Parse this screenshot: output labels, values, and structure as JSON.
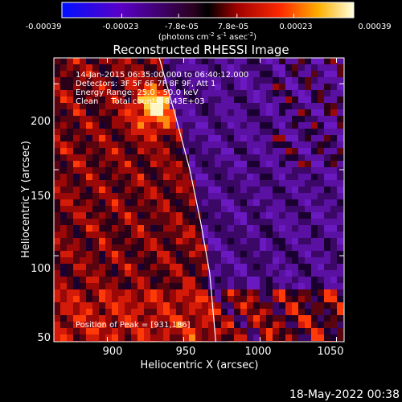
{
  "colorbar": {
    "ticks": [
      "-0.00039",
      "-0.00023",
      "-7.8e-05",
      "7.8e-05",
      "0.00023",
      "0.00039"
    ],
    "tick_values": [
      -0.00039,
      -0.00023,
      -7.8e-05,
      7.8e-05,
      0.00023,
      0.00039
    ],
    "range": [
      -0.00039,
      0.00039
    ],
    "unit_prefix": "(photons cm",
    "unit_sup1": "-2",
    "unit_mid": " s",
    "unit_sup2": "-1",
    "unit_mid2": " asec",
    "unit_sup3": "-2",
    "unit_suffix": ")"
  },
  "title": "Reconstructed RHESSI Image",
  "info": {
    "line1": "14-Jan-2015 06:35:00.000 to 06:40:12.000",
    "line2": "Detectors: 3F 5F 6F 7F 8F 9F, Att 1",
    "line3": "Energy Range: 25.0 - 50.0 keV",
    "line4": "Clean     Total counts: 8.43E+03"
  },
  "peak_label": "Position of Peak = [931,186]",
  "peak": {
    "x": 931,
    "y": 186
  },
  "axes": {
    "xlabel": "Heliocentric X (arcsec)",
    "ylabel": "Heliocentric Y (arcsec)",
    "xlim": [
      865,
      1055
    ],
    "ylim": [
      50,
      215
    ],
    "xticks": [
      "900",
      "950",
      "1000",
      "1050"
    ],
    "xtick_values": [
      900,
      950,
      1000,
      1050
    ],
    "yticks": [
      "50",
      "100",
      "150",
      "200"
    ],
    "ytick_values": [
      50,
      100,
      150,
      200
    ]
  },
  "limb": [
    [
      934,
      215
    ],
    [
      945,
      180
    ],
    [
      954,
      150
    ],
    [
      961,
      120
    ],
    [
      967,
      90
    ],
    [
      971,
      50
    ]
  ],
  "footer_date": "18-May-2022 00:38"
}
